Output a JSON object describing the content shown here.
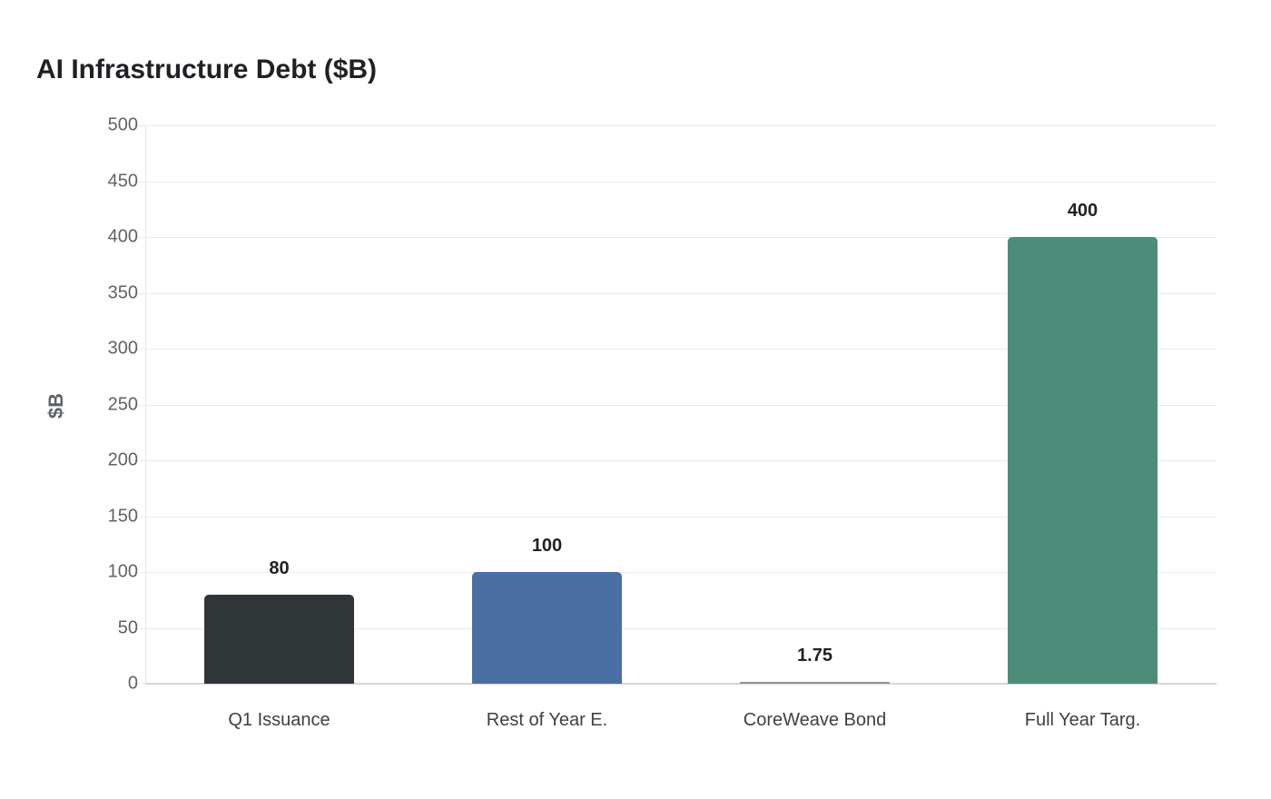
{
  "chart_data": {
    "type": "bar",
    "title": "AI Infrastructure Debt ($B)",
    "xlabel": "",
    "ylabel": "$B",
    "ylim": [
      0,
      500
    ],
    "yticks": [
      0,
      50,
      100,
      150,
      200,
      250,
      300,
      350,
      400,
      450,
      500
    ],
    "grid": true,
    "legend": null,
    "categories": [
      "Q1 Issuance",
      "Rest of Year E.",
      "CoreWeave Bond",
      "Full Year Targ."
    ],
    "values": [
      80,
      100,
      1.75,
      400
    ],
    "value_labels": [
      "80",
      "100",
      "1.75",
      "400"
    ],
    "colors": [
      "#303538",
      "#4a6fa3",
      "#8e969b",
      "#4e8c7a"
    ]
  }
}
